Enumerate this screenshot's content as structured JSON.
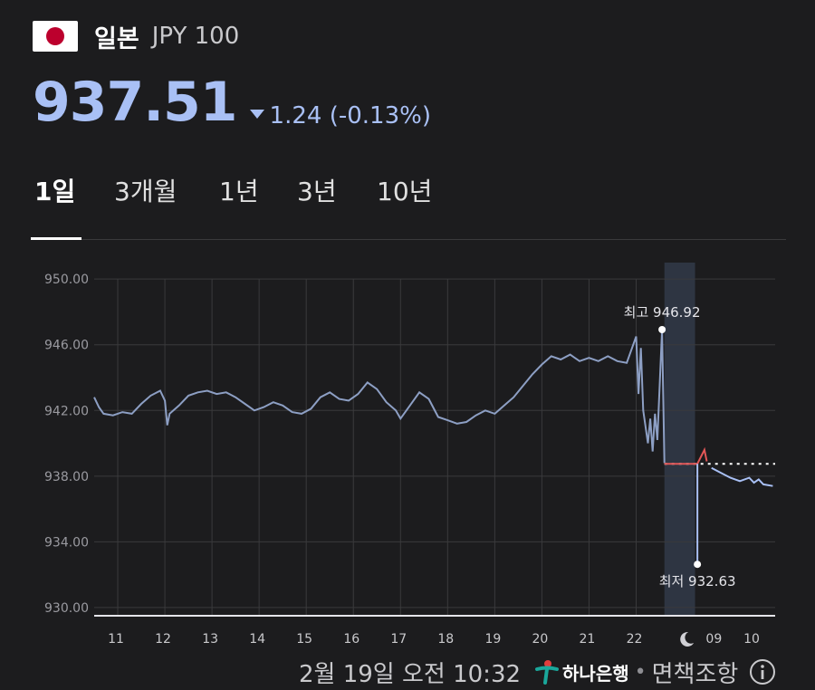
{
  "header": {
    "country": "일본",
    "code": "JPY 100"
  },
  "price": {
    "value": "937.51",
    "change": "1.24 (-0.13%)",
    "direction": "down"
  },
  "tabs": [
    {
      "label": "1일",
      "active": true
    },
    {
      "label": "3개월",
      "active": false
    },
    {
      "label": "1년",
      "active": false
    },
    {
      "label": "3년",
      "active": false
    },
    {
      "label": "10년",
      "active": false
    }
  ],
  "chart_data": {
    "type": "line",
    "xlabel": "",
    "ylabel": "",
    "ylim": [
      929.5,
      951.0
    ],
    "y_ticks": [
      "950.00",
      "946.00",
      "942.00",
      "938.00",
      "934.00",
      "930.00"
    ],
    "x_ticks": [
      "11",
      "12",
      "13",
      "14",
      "15",
      "16",
      "17",
      "18",
      "19",
      "20",
      "21",
      "22",
      "moon-icon",
      "09",
      "10"
    ],
    "high_label": "최고 946.92",
    "low_label": "최저 932.63",
    "high": 946.92,
    "low": 932.63,
    "reference_level": 938.75,
    "grid": true,
    "colors": {
      "line": "#8d9fc4",
      "after_hours": "#e25757",
      "latest": "#a9c0f5",
      "night_band": "#2e3542"
    },
    "series": [
      {
        "values": [
          [
            10.5,
            942.8
          ],
          [
            10.6,
            942.2
          ],
          [
            10.7,
            941.8
          ],
          [
            10.9,
            941.7
          ],
          [
            11.1,
            941.9
          ],
          [
            11.3,
            941.8
          ],
          [
            11.5,
            942.4
          ],
          [
            11.7,
            942.9
          ],
          [
            11.9,
            943.2
          ],
          [
            12.0,
            942.6
          ],
          [
            12.05,
            941.1
          ],
          [
            12.1,
            941.8
          ],
          [
            12.3,
            942.3
          ],
          [
            12.5,
            942.9
          ],
          [
            12.7,
            943.1
          ],
          [
            12.9,
            943.2
          ],
          [
            13.1,
            943.0
          ],
          [
            13.3,
            943.1
          ],
          [
            13.5,
            942.8
          ],
          [
            13.7,
            942.4
          ],
          [
            13.9,
            942.0
          ],
          [
            14.1,
            942.2
          ],
          [
            14.3,
            942.5
          ],
          [
            14.5,
            942.3
          ],
          [
            14.7,
            941.9
          ],
          [
            14.9,
            941.8
          ],
          [
            15.1,
            942.1
          ],
          [
            15.3,
            942.8
          ],
          [
            15.5,
            943.1
          ],
          [
            15.7,
            942.7
          ],
          [
            15.9,
            942.6
          ],
          [
            16.1,
            943.0
          ],
          [
            16.3,
            943.7
          ],
          [
            16.5,
            943.3
          ],
          [
            16.7,
            942.5
          ],
          [
            16.9,
            942.0
          ],
          [
            17.0,
            941.5
          ],
          [
            17.2,
            942.3
          ],
          [
            17.4,
            943.1
          ],
          [
            17.6,
            942.7
          ],
          [
            17.8,
            941.6
          ],
          [
            18.0,
            941.4
          ],
          [
            18.2,
            941.2
          ],
          [
            18.4,
            941.3
          ],
          [
            18.6,
            941.7
          ],
          [
            18.8,
            942.0
          ],
          [
            19.0,
            941.8
          ],
          [
            19.2,
            942.3
          ],
          [
            19.4,
            942.8
          ],
          [
            19.6,
            943.5
          ],
          [
            19.8,
            944.2
          ],
          [
            20.0,
            944.8
          ],
          [
            20.2,
            945.3
          ],
          [
            20.4,
            945.1
          ],
          [
            20.6,
            945.4
          ],
          [
            20.8,
            945.0
          ],
          [
            21.0,
            945.2
          ],
          [
            21.2,
            945.0
          ],
          [
            21.4,
            945.3
          ],
          [
            21.6,
            945.0
          ],
          [
            21.8,
            944.9
          ],
          [
            22.0,
            946.5
          ],
          [
            22.05,
            943.0
          ],
          [
            22.1,
            945.8
          ],
          [
            22.15,
            942.0
          ],
          [
            22.2,
            941.0
          ],
          [
            22.25,
            940.0
          ],
          [
            22.3,
            941.5
          ],
          [
            22.35,
            939.5
          ],
          [
            22.4,
            941.8
          ],
          [
            22.45,
            940.2
          ],
          [
            22.55,
            946.9
          ],
          [
            22.6,
            938.8
          ]
        ]
      },
      {
        "values": [
          [
            22.6,
            938.75
          ],
          [
            23.3,
            938.75
          ],
          [
            23.45,
            939.6
          ],
          [
            23.5,
            938.9
          ]
        ]
      },
      {
        "values": [
          [
            23.6,
            938.5
          ],
          [
            23.8,
            938.2
          ],
          [
            24.0,
            937.9
          ],
          [
            24.2,
            937.7
          ],
          [
            24.4,
            937.9
          ],
          [
            24.5,
            937.6
          ],
          [
            24.6,
            937.8
          ],
          [
            24.7,
            937.5
          ],
          [
            24.9,
            937.4
          ]
        ]
      }
    ]
  },
  "footer": {
    "timestamp": "2월 19일 오전 10:32",
    "bank": "하나은행",
    "disclaimer": "면책조항"
  }
}
